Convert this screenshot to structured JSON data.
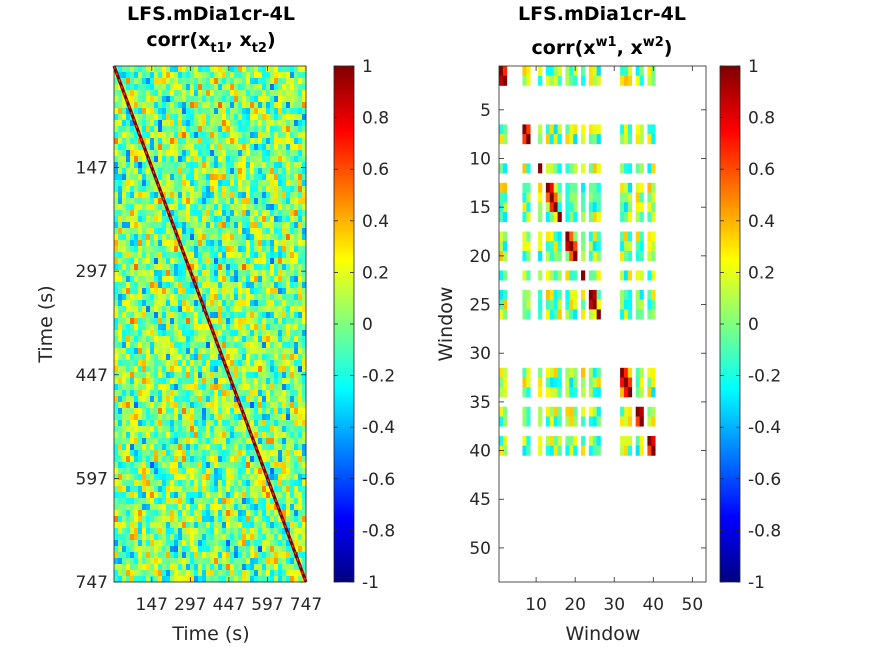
{
  "chart_data": [
    {
      "type": "heatmap",
      "title_line1": "LFS.mDia1cr-4L",
      "title_line2": {
        "base": "corr(x",
        "sub1": "t1",
        "sep": ", x",
        "sub2": "t2",
        "end": ")"
      },
      "xlabel": "Time (s)",
      "ylabel": "Time (s)",
      "x_ticks": [
        "147",
        "297",
        "447",
        "597",
        "747"
      ],
      "y_ticks": [
        "147",
        "297",
        "447",
        "597",
        "747"
      ],
      "axis_range": [
        0,
        747
      ],
      "y_direction": "reversed",
      "diagonal_value": 1,
      "colormap": "jet",
      "clim": [
        -1,
        1
      ],
      "colorbar_ticks": [
        "1",
        "0.8",
        "0.6",
        "0.4",
        "0.2",
        "0",
        "-0.2",
        "-0.4",
        "-0.6",
        "-0.8",
        "-1"
      ]
    },
    {
      "type": "heatmap",
      "title_line1": "LFS.mDia1cr-4L",
      "title_line2": {
        "base": "corr(x",
        "sup1": "w1",
        "sep": ", x",
        "sup2": "w2",
        "end": ")"
      },
      "xlabel": "Window",
      "ylabel": "Window",
      "x_ticks": [
        "10",
        "20",
        "30",
        "40",
        "50"
      ],
      "y_ticks": [
        "5",
        "10",
        "15",
        "20",
        "25",
        "30",
        "35",
        "40",
        "45",
        "50"
      ],
      "axis_range": [
        0.5,
        53.5
      ],
      "y_direction": "reversed",
      "valid_windows": [
        1,
        2,
        7,
        8,
        11,
        13,
        14,
        15,
        16,
        18,
        19,
        20,
        22,
        24,
        25,
        26,
        32,
        33,
        34,
        36,
        37,
        39,
        40
      ],
      "diagonal_value": 1,
      "colormap": "jet",
      "clim": [
        -1,
        1
      ],
      "colorbar_ticks": [
        "1",
        "0.8",
        "0.6",
        "0.4",
        "0.2",
        "0",
        "-0.2",
        "-0.4",
        "-0.6",
        "-0.8",
        "-1"
      ]
    }
  ]
}
